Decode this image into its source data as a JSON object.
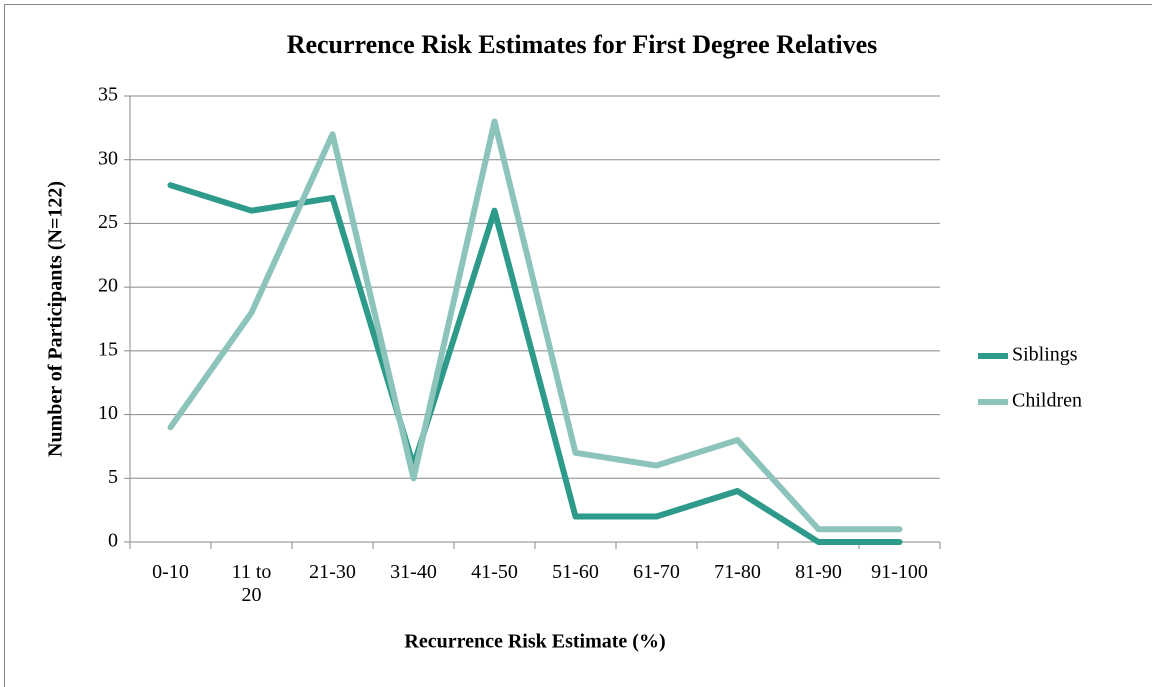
{
  "chart_data": {
    "type": "line",
    "title": "Recurrence Risk Estimates for First Degree Relatives",
    "xlabel": "Recurrence Risk Estimate (%)",
    "ylabel": "Number of Participants (N=122)",
    "categories": [
      "0-10",
      "11 to 20",
      "21-30",
      "31-40",
      "41-50",
      "51-60",
      "61-70",
      "71-80",
      "81-90",
      "91-100"
    ],
    "series": [
      {
        "name": "Siblings",
        "color": "#2e9a8a",
        "values": [
          28,
          26,
          27,
          6,
          26,
          2,
          2,
          4,
          0,
          0
        ]
      },
      {
        "name": "Children",
        "color": "#8cc4bc",
        "values": [
          9,
          18,
          32,
          5,
          33,
          7,
          6,
          8,
          1,
          1
        ]
      }
    ],
    "ylim": [
      0,
      35
    ],
    "yticks": [
      0,
      5,
      10,
      15,
      20,
      25,
      30,
      35
    ],
    "grid": true,
    "legend": "right"
  }
}
